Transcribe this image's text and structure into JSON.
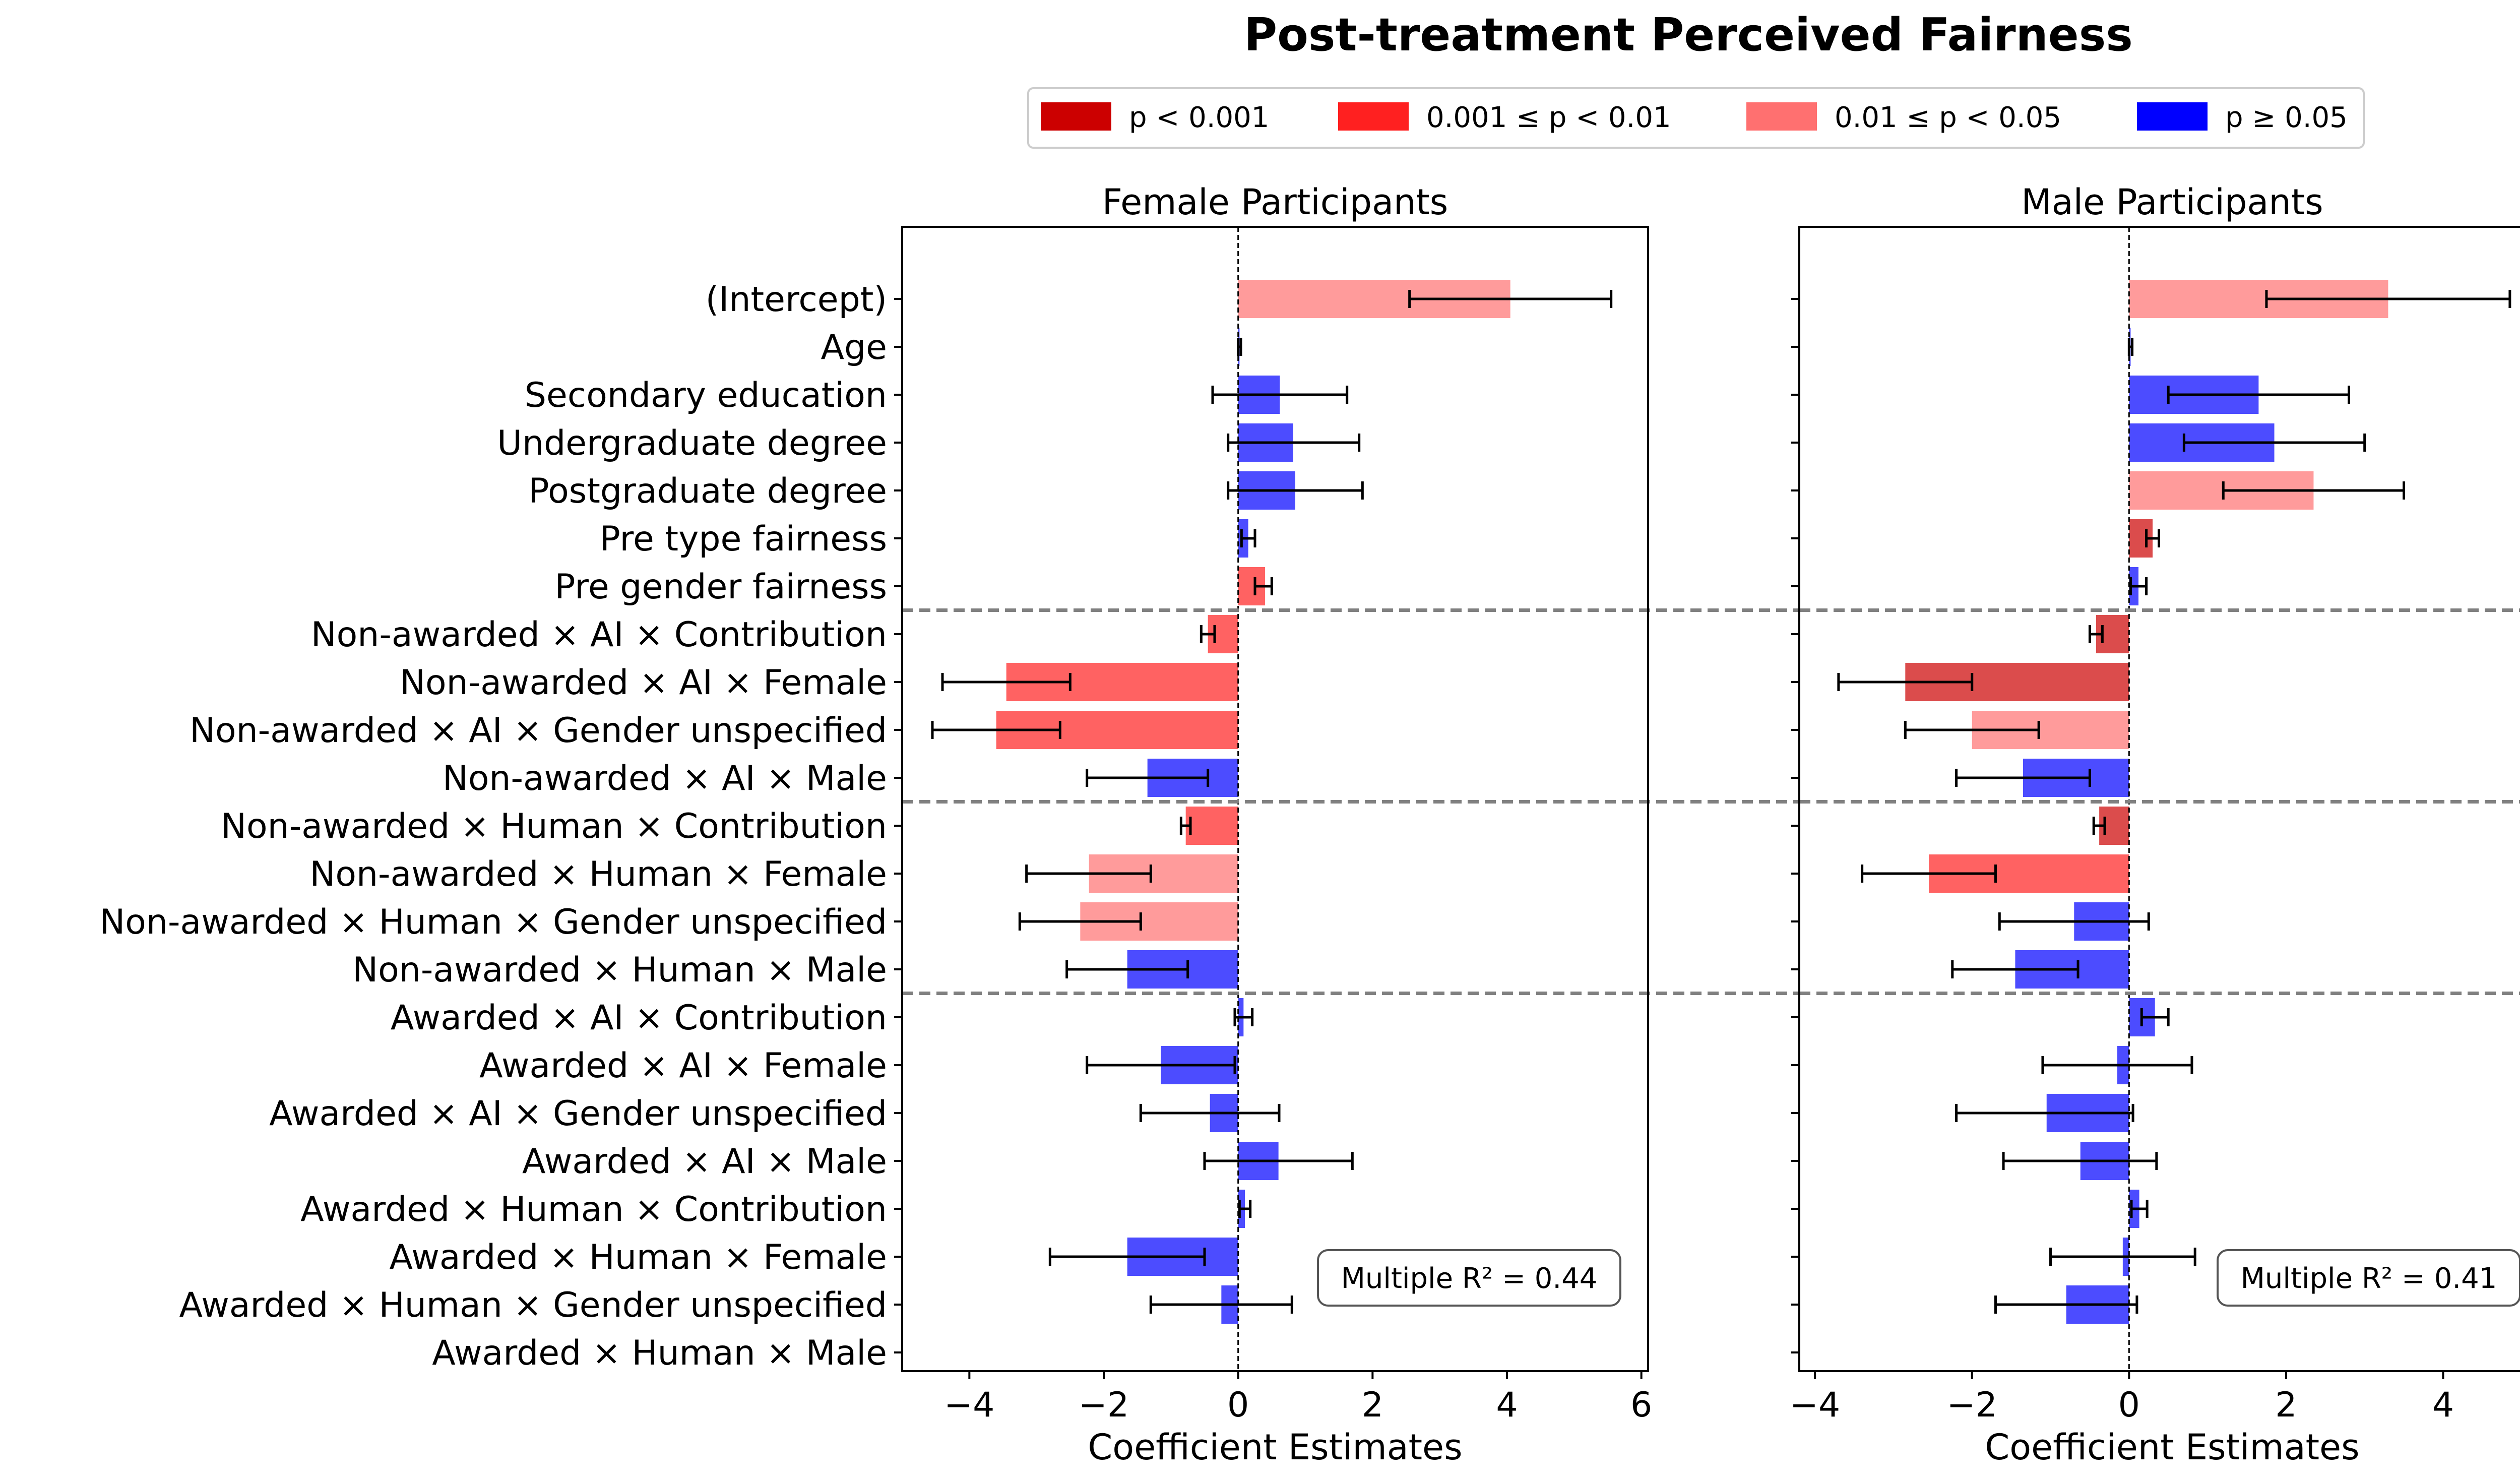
{
  "chart_data": [
    {
      "type": "bar",
      "orientation": "horizontal",
      "title": "Post-treatment Perceived Fairness",
      "panel_title": "Female Participants",
      "xlabel": "Coefficient Estimates",
      "xlim": [
        -5,
        6.1
      ],
      "xticks": [
        -4,
        -2,
        0,
        2,
        4,
        6
      ],
      "xtick_labels": [
        "−4",
        "−2",
        "0",
        "2",
        "4",
        "6"
      ],
      "annotation": "Multiple R² = 0.44",
      "categories": [
        "(Intercept)",
        "Age",
        "Secondary education",
        "Undergraduate degree",
        "Postgraduate degree",
        "Pre type fairness",
        "Pre gender fairness",
        "Non-awarded × AI × Contribution",
        "Non-awarded × AI × Female",
        "Non-awarded × AI × Gender unspecified",
        "Non-awarded × AI × Male",
        "Non-awarded × Human × Contribution",
        "Non-awarded × Human × Female",
        "Non-awarded × Human × Gender unspecified",
        "Non-awarded × Human × Male",
        "Awarded × AI × Contribution",
        "Awarded × AI × Female",
        "Awarded × AI × Gender unspecified",
        "Awarded × AI × Male",
        "Awarded × Human × Contribution",
        "Awarded × Human × Female",
        "Awarded × Human × Gender unspecified",
        "Awarded × Human × Male"
      ],
      "values": [
        4.05,
        0.02,
        0.62,
        0.82,
        0.85,
        0.15,
        0.4,
        -0.45,
        -3.45,
        -3.6,
        -1.35,
        -0.78,
        -2.22,
        -2.35,
        -1.65,
        0.08,
        -1.15,
        -0.42,
        0.6,
        0.1,
        -1.65,
        -0.25,
        null
      ],
      "ci_low": [
        2.55,
        0.0,
        -0.38,
        -0.15,
        -0.15,
        0.05,
        0.25,
        -0.55,
        -4.4,
        -4.55,
        -2.25,
        -0.85,
        -3.15,
        -3.25,
        -2.55,
        -0.05,
        -2.25,
        -1.45,
        -0.5,
        0.02,
        -2.8,
        -1.3,
        null
      ],
      "ci_high": [
        5.55,
        0.04,
        1.62,
        1.8,
        1.85,
        0.25,
        0.5,
        -0.35,
        -2.5,
        -2.65,
        -0.45,
        -0.71,
        -1.3,
        -1.45,
        -0.75,
        0.21,
        -0.05,
        0.61,
        1.7,
        0.18,
        -0.5,
        0.8,
        null
      ],
      "significance": [
        "p2",
        "p3",
        "p3",
        "p3",
        "p3",
        "p3",
        "p1",
        "p1",
        "p1",
        "p1",
        "p3",
        "p1",
        "p2",
        "p2",
        "p3",
        "p3",
        "p3",
        "p3",
        "p3",
        "p3",
        "p3",
        "p3",
        null
      ]
    },
    {
      "type": "bar",
      "orientation": "horizontal",
      "panel_title": "Male Participants",
      "xlabel": "Coefficient Estimates",
      "xlim": [
        -4.2,
        5.3
      ],
      "xticks": [
        -4,
        -2,
        0,
        2,
        4
      ],
      "xtick_labels": [
        "−4",
        "−2",
        "0",
        "2",
        "4"
      ],
      "annotation": "Multiple R² = 0.41",
      "categories": [
        "(Intercept)",
        "Age",
        "Secondary education",
        "Undergraduate degree",
        "Postgraduate degree",
        "Pre type fairness",
        "Pre gender fairness",
        "Non-awarded × AI × Contribution",
        "Non-awarded × AI × Female",
        "Non-awarded × AI × Gender unspecified",
        "Non-awarded × AI × Male",
        "Non-awarded × Human × Contribution",
        "Non-awarded × Human × Female",
        "Non-awarded × Human × Gender unspecified",
        "Non-awarded × Human × Male",
        "Awarded × AI × Contribution",
        "Awarded × AI × Female",
        "Awarded × AI × Gender unspecified",
        "Awarded × AI × Male",
        "Awarded × Human × Contribution",
        "Awarded × Human × Female",
        "Awarded × Human × Gender unspecified",
        "Awarded × Human × Male"
      ],
      "values": [
        3.3,
        0.02,
        1.65,
        1.85,
        2.35,
        0.3,
        0.12,
        -0.42,
        -2.85,
        -2.0,
        -1.35,
        -0.38,
        -2.55,
        -0.7,
        -1.45,
        0.33,
        -0.15,
        -1.05,
        -0.62,
        0.13,
        -0.08,
        -0.8,
        null
      ],
      "ci_low": [
        1.75,
        0.0,
        0.5,
        0.7,
        1.2,
        0.22,
        0.02,
        -0.5,
        -3.7,
        -2.85,
        -2.2,
        -0.45,
        -3.4,
        -1.65,
        -2.25,
        0.16,
        -1.1,
        -2.2,
        -1.6,
        0.03,
        -1.0,
        -1.7,
        null
      ],
      "ci_high": [
        4.85,
        0.04,
        2.8,
        3.0,
        3.5,
        0.38,
        0.22,
        -0.34,
        -2.0,
        -1.15,
        -0.5,
        -0.31,
        -1.7,
        0.25,
        -0.65,
        0.5,
        0.8,
        0.05,
        0.35,
        0.23,
        0.84,
        0.1,
        null
      ],
      "significance": [
        "p2",
        "p3",
        "p3",
        "p3",
        "p2",
        "p0",
        "p3",
        "p0",
        "p0",
        "p2",
        "p3",
        "p0",
        "p1",
        "p3",
        "p3",
        "p3",
        "p3",
        "p3",
        "p3",
        "p3",
        "p3",
        "p3",
        null
      ]
    }
  ],
  "legend": {
    "items": [
      {
        "key": "p0",
        "label": "p < 0.001",
        "color": "#cc0000"
      },
      {
        "key": "p1",
        "label": "0.001 ≤ p < 0.01",
        "color": "#ff2020"
      },
      {
        "key": "p2",
        "label": "0.01 ≤ p < 0.05",
        "color": "#ff7070"
      },
      {
        "key": "p3",
        "label": "p ≥ 0.05",
        "color": "#0000ff"
      }
    ]
  },
  "group_separators_after": [
    6,
    10,
    14
  ]
}
